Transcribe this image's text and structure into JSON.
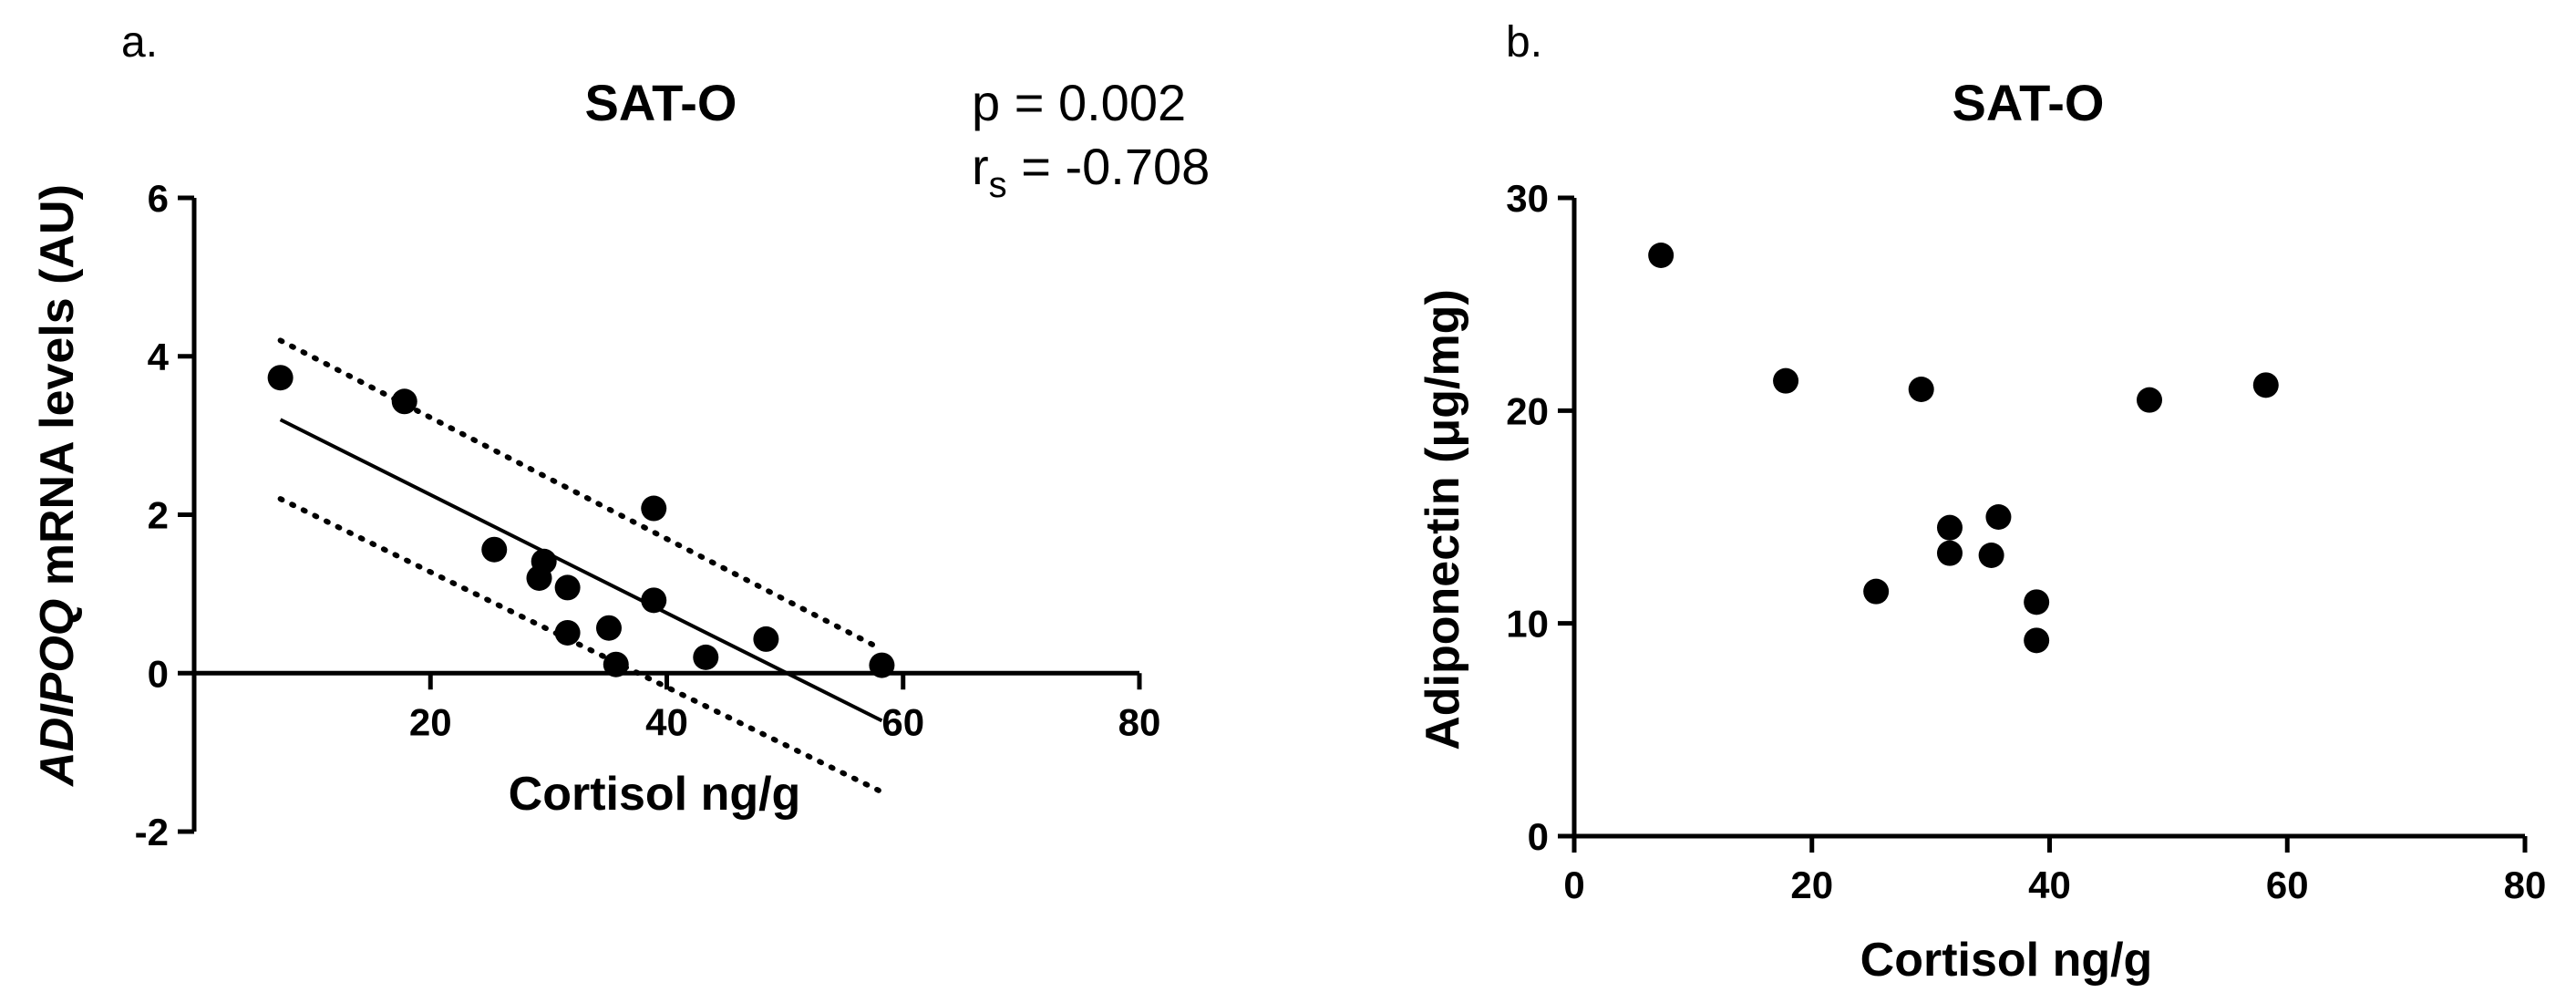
{
  "panels": {
    "a": {
      "letter": "a.",
      "stat_p": "p =  0.002",
      "stat_r_main": "r",
      "stat_r_sub": "s",
      "stat_r_value": " = -0.708",
      "ylabel_italic": "ADIPOQ",
      "ylabel_rest": " mRNA levels (AU)"
    },
    "b": {
      "letter": "b."
    }
  },
  "chart_data": [
    {
      "type": "scatter",
      "title": "SAT-O",
      "xlabel": "Cortisol ng/g",
      "ylabel": "ADIPOQ mRNA levels (AU)",
      "xlim": [
        0,
        80
      ],
      "ylim": [
        -2,
        6
      ],
      "xticks": [
        20,
        40,
        60,
        80
      ],
      "yticks": [
        -2,
        0,
        2,
        4,
        6
      ],
      "grid": false,
      "legend": "none",
      "points": [
        {
          "x": 7.3,
          "y": 3.73
        },
        {
          "x": 17.8,
          "y": 3.43
        },
        {
          "x": 25.4,
          "y": 1.56
        },
        {
          "x": 29.2,
          "y": 1.2
        },
        {
          "x": 29.6,
          "y": 1.41
        },
        {
          "x": 31.6,
          "y": 1.08
        },
        {
          "x": 31.6,
          "y": 0.51
        },
        {
          "x": 35.1,
          "y": 0.57
        },
        {
          "x": 35.7,
          "y": 0.11
        },
        {
          "x": 38.9,
          "y": 2.08
        },
        {
          "x": 38.9,
          "y": 0.92
        },
        {
          "x": 43.3,
          "y": 0.2
        },
        {
          "x": 48.4,
          "y": 0.43
        },
        {
          "x": 58.2,
          "y": 0.1
        }
      ],
      "regression": {
        "x": [
          7.3,
          58.2
        ],
        "y": [
          3.2,
          -0.6
        ]
      },
      "ci_upper": {
        "x": [
          7.3,
          58.2
        ],
        "y": [
          4.2,
          0.3
        ]
      },
      "ci_lower": {
        "x": [
          7.3,
          58.2
        ],
        "y": [
          2.2,
          -1.5
        ]
      },
      "annotations": [
        "p =  0.002",
        "rs = -0.708"
      ]
    },
    {
      "type": "scatter",
      "title": "SAT-O",
      "xlabel": "Cortisol ng/g",
      "ylabel": "Adiponectin (μg/mg)",
      "xlim": [
        0,
        80
      ],
      "ylim": [
        0,
        30
      ],
      "xticks": [
        0,
        20,
        40,
        60,
        80
      ],
      "yticks": [
        0,
        10,
        20,
        30
      ],
      "grid": false,
      "legend": "none",
      "points": [
        {
          "x": 7.3,
          "y": 27.3
        },
        {
          "x": 17.8,
          "y": 21.4
        },
        {
          "x": 25.4,
          "y": 11.5
        },
        {
          "x": 29.2,
          "y": 21.0
        },
        {
          "x": 31.6,
          "y": 14.5
        },
        {
          "x": 31.6,
          "y": 13.3
        },
        {
          "x": 35.1,
          "y": 13.2
        },
        {
          "x": 35.7,
          "y": 15.0
        },
        {
          "x": 38.9,
          "y": 11.0
        },
        {
          "x": 38.9,
          "y": 9.2
        },
        {
          "x": 48.4,
          "y": 20.5
        },
        {
          "x": 58.2,
          "y": 21.2
        }
      ]
    }
  ]
}
